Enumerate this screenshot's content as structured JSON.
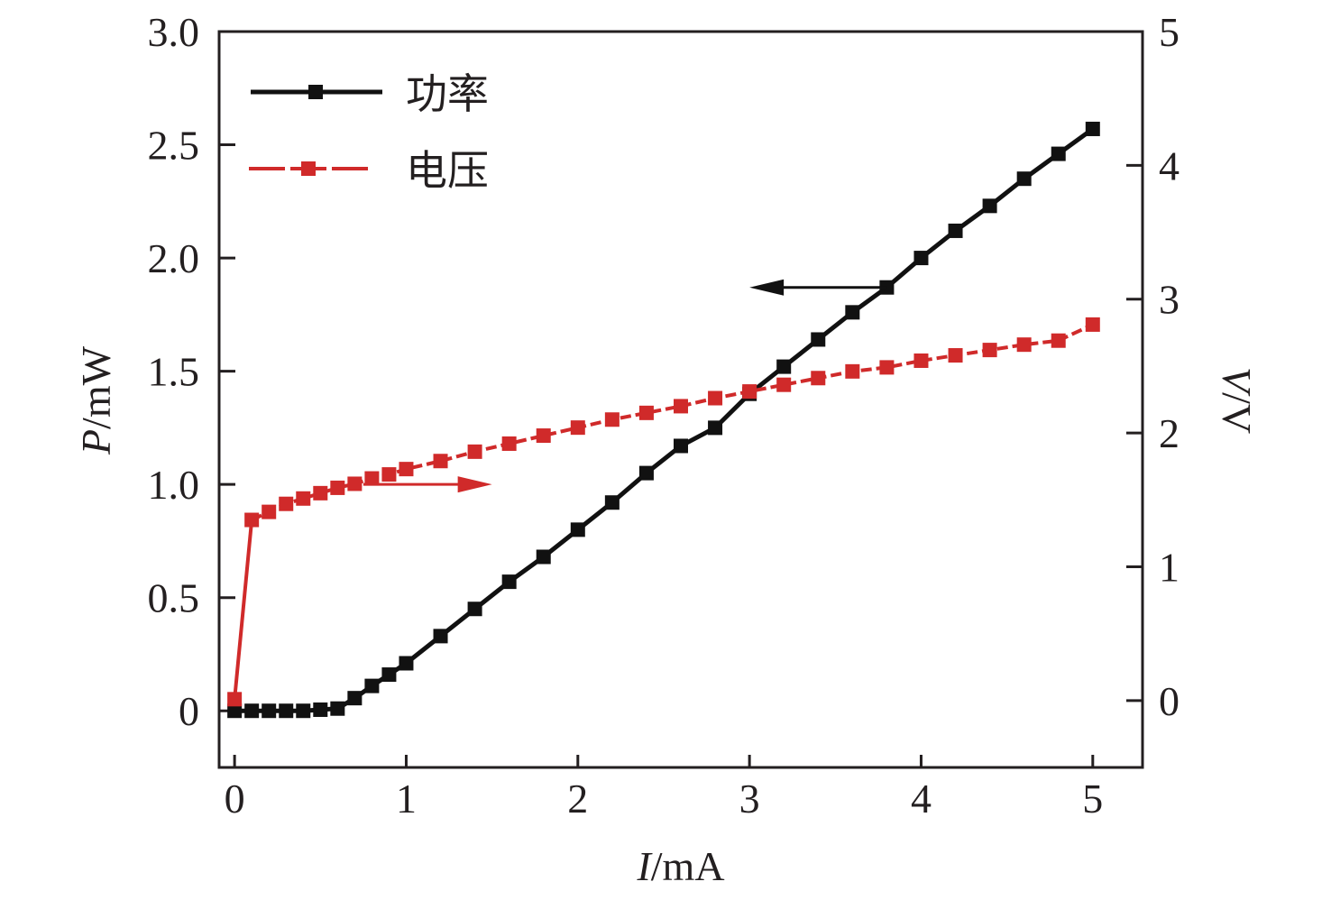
{
  "chart_data": {
    "type": "line",
    "title": "",
    "xlabel": "I/mA",
    "xlabel_italic": "I",
    "xlabel_unit": "/mA",
    "ylabel_left": "P/mW",
    "ylabel_left_italic": "P",
    "ylabel_left_unit": "/mW",
    "ylabel_right": "V/V",
    "ylabel_right_italic": "V",
    "ylabel_right_unit": "/V",
    "xlim": [
      -0.09,
      5.29
    ],
    "ylim_left": [
      -0.25,
      3.0
    ],
    "ylim_right": [
      -0.5,
      5.0
    ],
    "x_ticks": [
      "0",
      "1",
      "2",
      "3",
      "4",
      "5"
    ],
    "y_left_ticks": [
      "0",
      "0.5",
      "1.0",
      "1.5",
      "2.0",
      "2.5",
      "3.0"
    ],
    "y_right_ticks": [
      "0",
      "1",
      "2",
      "3",
      "4",
      "5"
    ],
    "grid": false,
    "legend_position": "top-left",
    "series": [
      {
        "name": "功率",
        "axis": "left",
        "color": "#111111",
        "x": [
          0,
          0.1,
          0.2,
          0.3,
          0.4,
          0.5,
          0.6,
          0.7,
          0.8,
          0.9,
          1.0,
          1.2,
          1.4,
          1.6,
          1.8,
          2.0,
          2.2,
          2.4,
          2.6,
          2.8,
          3.0,
          3.2,
          3.4,
          3.6,
          3.8,
          4.0,
          4.2,
          4.4,
          4.6,
          4.8,
          5.0
        ],
        "values": [
          0,
          0,
          0,
          0,
          0,
          0.005,
          0.01,
          0.056,
          0.11,
          0.16,
          0.21,
          0.33,
          0.45,
          0.57,
          0.68,
          0.8,
          0.92,
          1.05,
          1.17,
          1.25,
          1.4,
          1.52,
          1.64,
          1.76,
          1.87,
          2.0,
          2.12,
          2.23,
          2.35,
          2.46,
          2.57
        ]
      },
      {
        "name": "电压",
        "axis": "right",
        "color": "#d02a2a",
        "x": [
          0,
          0.1,
          0.2,
          0.3,
          0.4,
          0.5,
          0.6,
          0.7,
          0.8,
          0.9,
          1.0,
          1.2,
          1.4,
          1.6,
          1.8,
          2.0,
          2.2,
          2.4,
          2.6,
          2.8,
          3.0,
          3.2,
          3.4,
          3.6,
          3.8,
          4.0,
          4.2,
          4.4,
          4.6,
          4.8,
          5.0
        ],
        "values": [
          0.01,
          1.35,
          1.41,
          1.47,
          1.51,
          1.55,
          1.59,
          1.62,
          1.66,
          1.69,
          1.73,
          1.79,
          1.86,
          1.92,
          1.98,
          2.04,
          2.1,
          2.15,
          2.2,
          2.26,
          2.31,
          2.36,
          2.41,
          2.46,
          2.49,
          2.54,
          2.58,
          2.62,
          2.66,
          2.69,
          2.81
        ]
      }
    ],
    "annotations": [
      {
        "type": "arrow",
        "points_to": "left axis",
        "color": "#111111",
        "from": [
          3.8,
          1.87
        ],
        "to": [
          3.0,
          1.87
        ],
        "axis": "left"
      },
      {
        "type": "arrow",
        "points_to": "right axis",
        "color": "#d02a2a",
        "from": [
          0.75,
          1.0
        ],
        "to": [
          1.5,
          1.0
        ],
        "axis": "left"
      }
    ]
  }
}
